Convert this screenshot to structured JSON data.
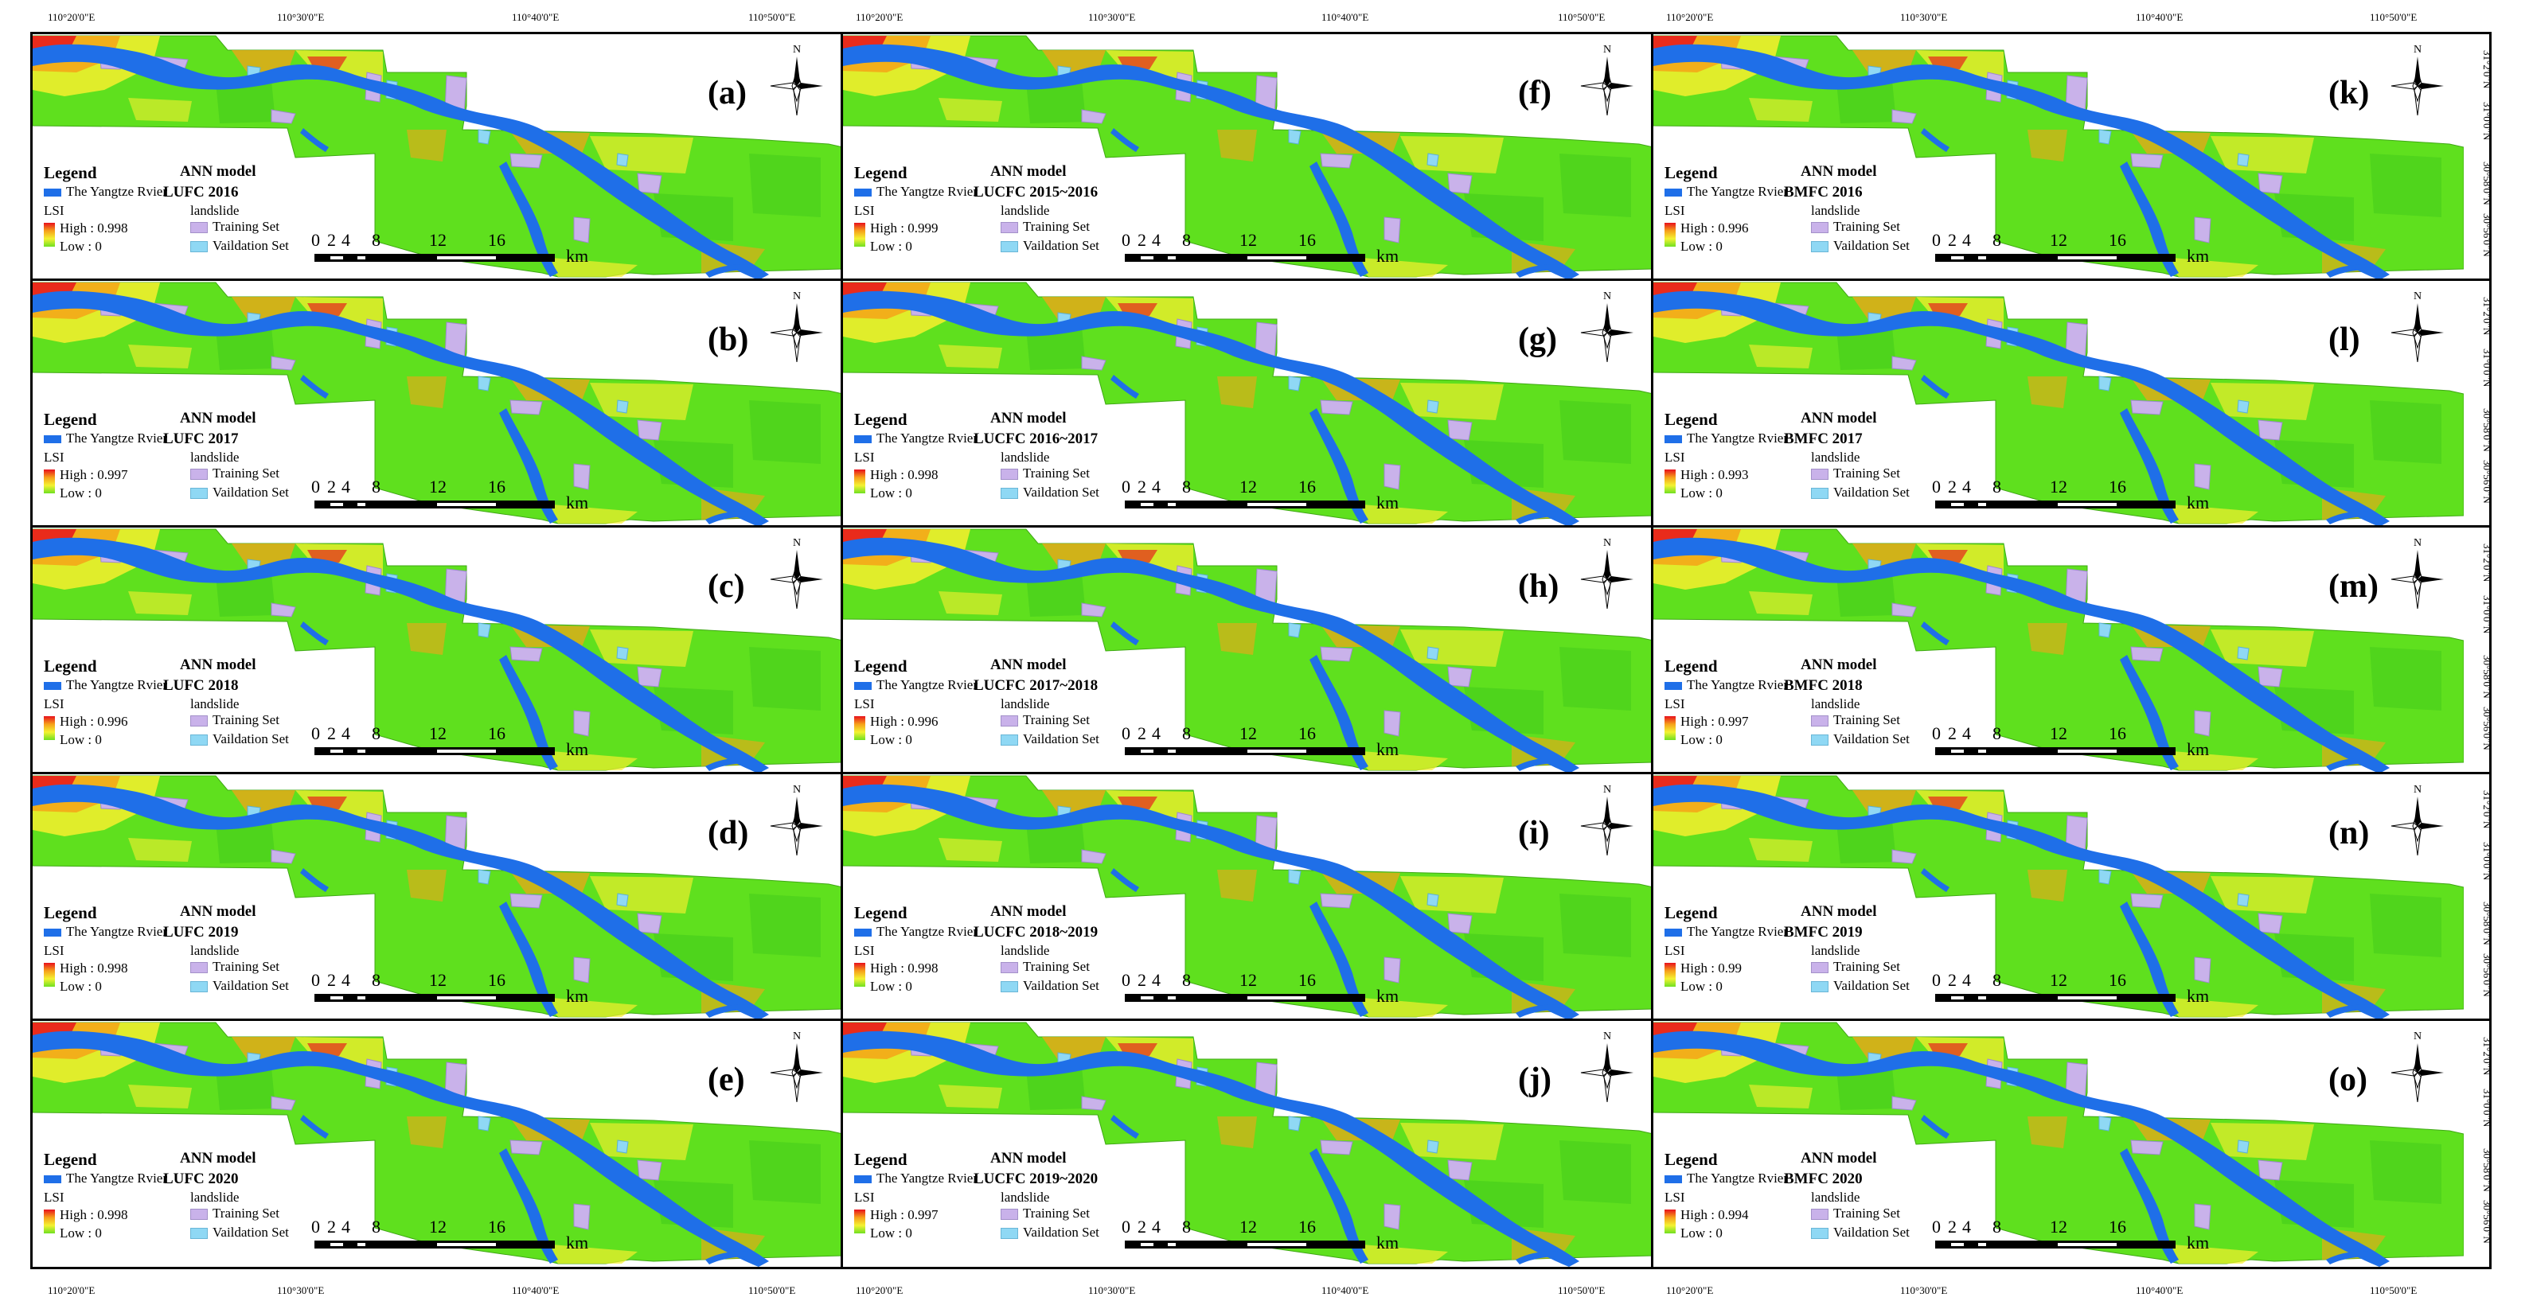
{
  "axes": {
    "top_longitudes": [
      "110°20'0\"E",
      "110°30'0\"E",
      "110°40'0\"E",
      "110°50'0\"E"
    ],
    "bottom_longitudes": [
      "110°20'0\"E",
      "110°30'0\"E",
      "110°40'0\"E",
      "110°50'0\"E"
    ],
    "right_latitudes": [
      "31°2'0\"N",
      "31°0'0\"N",
      "30°58'0\"N",
      "30°56'0\"N"
    ]
  },
  "legend": {
    "title": "Legend",
    "river": "The Yangtze Rvier",
    "lsi": "LSI",
    "low": "Low : 0",
    "model_label": "ANN model",
    "landslide": "landslide",
    "training": "Training Set",
    "validation": "Vaildation Set"
  },
  "scale": {
    "ticks": [
      "0",
      "2",
      "4",
      "8",
      "12",
      "16"
    ],
    "unit": "km"
  },
  "north": "N",
  "colors": {
    "river": "#1f6fe8",
    "high": "#e8101c",
    "mid": "#f6a01a",
    "low": "#5fe01e",
    "landslide": "#c9b2ea"
  },
  "panels": [
    {
      "letter": "(a)",
      "model": "LUFC 2016",
      "high": "High : 0.998"
    },
    {
      "letter": "(b)",
      "model": "LUFC 2017",
      "high": "High : 0.997"
    },
    {
      "letter": "(c)",
      "model": "LUFC 2018",
      "high": "High : 0.996"
    },
    {
      "letter": "(d)",
      "model": "LUFC 2019",
      "high": "High : 0.998"
    },
    {
      "letter": "(e)",
      "model": "LUFC 2020",
      "high": "High : 0.998"
    },
    {
      "letter": "(f)",
      "model": "LUCFC 2015~2016",
      "high": "High : 0.999"
    },
    {
      "letter": "(g)",
      "model": "LUCFC 2016~2017",
      "high": "High : 0.998"
    },
    {
      "letter": "(h)",
      "model": "LUCFC 2017~2018",
      "high": "High : 0.996"
    },
    {
      "letter": "(i)",
      "model": "LUCFC 2018~2019",
      "high": "High : 0.998"
    },
    {
      "letter": "(j)",
      "model": "LUCFC 2019~2020",
      "high": "High : 0.997"
    },
    {
      "letter": "(k)",
      "model": "BMFC 2016",
      "high": "High : 0.996"
    },
    {
      "letter": "(l)",
      "model": "BMFC 2017",
      "high": "High : 0.993"
    },
    {
      "letter": "(m)",
      "model": "BMFC 2018",
      "high": "High : 0.997"
    },
    {
      "letter": "(n)",
      "model": "BMFC 2019",
      "high": "High : 0.99"
    },
    {
      "letter": "(o)",
      "model": "BMFC 2020",
      "high": "High : 0.994"
    }
  ]
}
